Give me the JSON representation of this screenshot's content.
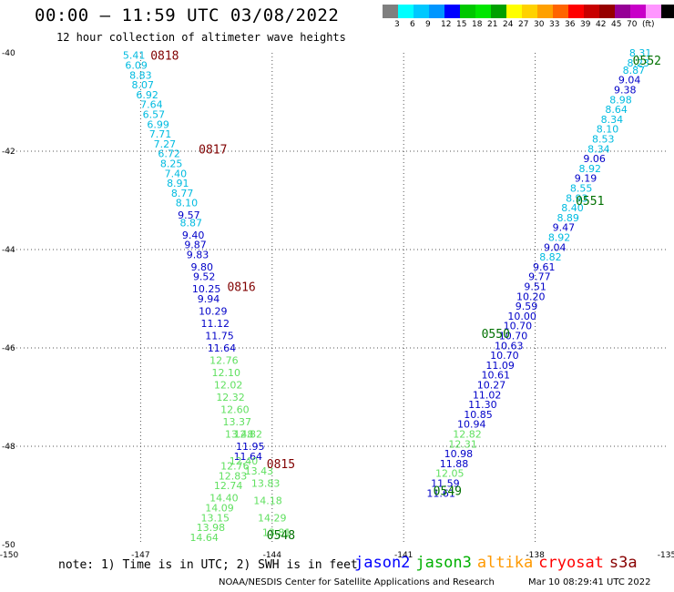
{
  "header": {
    "title": "00:00 – 11:59 UTC 03/08/2022",
    "subtitle": "12 hour collection of altimeter wave heights"
  },
  "colorbar": {
    "colors": [
      "#7f7f7f",
      "#00ffff",
      "#00c8ff",
      "#0096ff",
      "#0000ff",
      "#00c800",
      "#00e600",
      "#00a000",
      "#ffff00",
      "#ffd200",
      "#ffa000",
      "#ff6400",
      "#ff0000",
      "#c80000",
      "#960000",
      "#960096",
      "#c800c8",
      "#ff96ff",
      "#000000"
    ],
    "labels": [
      "3",
      "6",
      "9",
      "12",
      "15",
      "18",
      "21",
      "24",
      "27",
      "30",
      "33",
      "36",
      "39",
      "42",
      "45",
      "70",
      "(ft)"
    ]
  },
  "map": {
    "lon_ticks": [
      "-150",
      "-147",
      "-144",
      "-141",
      "-138",
      "-135"
    ],
    "lat_ticks": [
      "-40",
      "-42",
      "-44",
      "-46",
      "-48",
      "-50"
    ]
  },
  "chart_data": {
    "type": "map",
    "xlim": [
      -150,
      -135
    ],
    "ylim": [
      -50,
      -40
    ],
    "grid": true,
    "passes": [
      {
        "track": "descending",
        "colors": {
          "cyan": "#00bbe0",
          "blue": "#0000c8",
          "green": "#60e060"
        },
        "points": [
          {
            "lon": -147.15,
            "lat": -40.05,
            "v": "5.41",
            "c": "cyan"
          },
          {
            "lon": -147.1,
            "lat": -40.25,
            "v": "6.09",
            "c": "cyan"
          },
          {
            "lon": -147.0,
            "lat": -40.45,
            "v": "8.83",
            "c": "cyan"
          },
          {
            "lon": -146.95,
            "lat": -40.65,
            "v": "8.07",
            "c": "cyan"
          },
          {
            "lon": -146.85,
            "lat": -40.85,
            "v": "6.92",
            "c": "cyan"
          },
          {
            "lon": -146.75,
            "lat": -41.05,
            "v": "7.64",
            "c": "cyan"
          },
          {
            "lon": -146.7,
            "lat": -41.25,
            "v": "6.57",
            "c": "cyan"
          },
          {
            "lon": -146.6,
            "lat": -41.45,
            "v": "6.99",
            "c": "cyan"
          },
          {
            "lon": -146.55,
            "lat": -41.65,
            "v": "7.71",
            "c": "cyan"
          },
          {
            "lon": -146.45,
            "lat": -41.85,
            "v": "7.27",
            "c": "cyan"
          },
          {
            "lon": -146.35,
            "lat": -42.05,
            "v": "6.72",
            "c": "cyan"
          },
          {
            "lon": -146.3,
            "lat": -42.25,
            "v": "8.25",
            "c": "cyan"
          },
          {
            "lon": -146.2,
            "lat": -42.45,
            "v": "7.40",
            "c": "cyan"
          },
          {
            "lon": -146.15,
            "lat": -42.65,
            "v": "8.91",
            "c": "cyan"
          },
          {
            "lon": -146.05,
            "lat": -42.85,
            "v": "8.77",
            "c": "cyan"
          },
          {
            "lon": -145.95,
            "lat": -43.05,
            "v": "8.10",
            "c": "cyan"
          },
          {
            "lon": -145.9,
            "lat": -43.3,
            "v": "9.57",
            "c": "blue"
          },
          {
            "lon": -145.85,
            "lat": -43.45,
            "v": "8.87",
            "c": "cyan"
          },
          {
            "lon": -145.8,
            "lat": -43.7,
            "v": "9.40",
            "c": "blue"
          },
          {
            "lon": -145.75,
            "lat": -43.9,
            "v": "9.87",
            "c": "blue"
          },
          {
            "lon": -145.7,
            "lat": -44.1,
            "v": "9.83",
            "c": "blue"
          },
          {
            "lon": -145.6,
            "lat": -44.35,
            "v": "9.80",
            "c": "blue"
          },
          {
            "lon": -145.55,
            "lat": -44.55,
            "v": "9.52",
            "c": "blue"
          },
          {
            "lon": -145.5,
            "lat": -44.8,
            "v": "10.25",
            "c": "blue"
          },
          {
            "lon": -145.45,
            "lat": -45.0,
            "v": "9.94",
            "c": "blue"
          },
          {
            "lon": -145.35,
            "lat": -45.25,
            "v": "10.29",
            "c": "blue"
          },
          {
            "lon": -145.3,
            "lat": -45.5,
            "v": "11.12",
            "c": "blue"
          },
          {
            "lon": -145.2,
            "lat": -45.75,
            "v": "11.75",
            "c": "blue"
          },
          {
            "lon": -145.15,
            "lat": -46.0,
            "v": "11.64",
            "c": "blue"
          },
          {
            "lon": -145.1,
            "lat": -46.25,
            "v": "12.76",
            "c": "green"
          },
          {
            "lon": -145.05,
            "lat": -46.5,
            "v": "12.10",
            "c": "green"
          },
          {
            "lon": -145.0,
            "lat": -46.75,
            "v": "12.02",
            "c": "green"
          },
          {
            "lon": -144.95,
            "lat": -47.0,
            "v": "12.32",
            "c": "green"
          },
          {
            "lon": -144.85,
            "lat": -47.25,
            "v": "12.60",
            "c": "green"
          },
          {
            "lon": -144.8,
            "lat": -47.5,
            "v": "13.37",
            "c": "green"
          },
          {
            "lon": -144.75,
            "lat": -47.75,
            "v": "13.48",
            "c": "green"
          },
          {
            "lon": -144.55,
            "lat": -47.75,
            "v": "12.82",
            "c": "green"
          },
          {
            "lon": -144.5,
            "lat": -48.0,
            "v": "11.95",
            "c": "blue"
          },
          {
            "lon": -144.55,
            "lat": -48.2,
            "v": "11.64",
            "c": "blue"
          },
          {
            "lon": -144.65,
            "lat": -48.3,
            "v": "12.40",
            "c": "green"
          },
          {
            "lon": -144.85,
            "lat": -48.4,
            "v": "12.76",
            "c": "green"
          },
          {
            "lon": -144.3,
            "lat": -48.5,
            "v": "13.43",
            "c": "green"
          },
          {
            "lon": -144.9,
            "lat": -48.6,
            "v": "12.83",
            "c": "green"
          },
          {
            "lon": -144.15,
            "lat": -48.75,
            "v": "13.83",
            "c": "green"
          },
          {
            "lon": -145.0,
            "lat": -48.8,
            "v": "12.74",
            "c": "green"
          },
          {
            "lon": -145.1,
            "lat": -49.05,
            "v": "14.40",
            "c": "green"
          },
          {
            "lon": -144.1,
            "lat": -49.1,
            "v": "14.18",
            "c": "green"
          },
          {
            "lon": -145.2,
            "lat": -49.25,
            "v": "14.09",
            "c": "green"
          },
          {
            "lon": -144.0,
            "lat": -49.45,
            "v": "14.29",
            "c": "green"
          },
          {
            "lon": -145.3,
            "lat": -49.45,
            "v": "13.15",
            "c": "green"
          },
          {
            "lon": -145.4,
            "lat": -49.65,
            "v": "13.98",
            "c": "green"
          },
          {
            "lon": -143.9,
            "lat": -49.75,
            "v": "13.81",
            "c": "green"
          },
          {
            "lon": -145.55,
            "lat": -49.85,
            "v": "14.64",
            "c": "green"
          }
        ],
        "time_labels": [
          {
            "lon": -146.45,
            "lat": -40.05,
            "text": "0818"
          },
          {
            "lon": -145.35,
            "lat": -41.95,
            "text": "0817"
          },
          {
            "lon": -144.7,
            "lat": -44.75,
            "text": "0816"
          },
          {
            "lon": -143.8,
            "lat": -48.35,
            "text": "0815"
          }
        ],
        "time_color": "#800000"
      },
      {
        "track": "ascending",
        "points": [
          {
            "lon": -135.6,
            "lat": -40.0,
            "v": "8.31",
            "c": "cyan"
          },
          {
            "lon": -135.65,
            "lat": -40.2,
            "v": "8.23",
            "c": "cyan"
          },
          {
            "lon": -135.75,
            "lat": -40.35,
            "v": "8.87",
            "c": "cyan"
          },
          {
            "lon": -135.85,
            "lat": -40.55,
            "v": "9.04",
            "c": "blue"
          },
          {
            "lon": -135.95,
            "lat": -40.75,
            "v": "9.38",
            "c": "blue"
          },
          {
            "lon": -136.05,
            "lat": -40.95,
            "v": "8.98",
            "c": "cyan"
          },
          {
            "lon": -136.15,
            "lat": -41.15,
            "v": "8.64",
            "c": "cyan"
          },
          {
            "lon": -136.25,
            "lat": -41.35,
            "v": "8.34",
            "c": "cyan"
          },
          {
            "lon": -136.35,
            "lat": -41.55,
            "v": "8.10",
            "c": "cyan"
          },
          {
            "lon": -136.45,
            "lat": -41.75,
            "v": "8.53",
            "c": "cyan"
          },
          {
            "lon": -136.55,
            "lat": -41.95,
            "v": "8.34",
            "c": "cyan"
          },
          {
            "lon": -136.65,
            "lat": -42.15,
            "v": "9.06",
            "c": "blue"
          },
          {
            "lon": -136.75,
            "lat": -42.35,
            "v": "8.92",
            "c": "cyan"
          },
          {
            "lon": -136.85,
            "lat": -42.55,
            "v": "9.19",
            "c": "blue"
          },
          {
            "lon": -136.95,
            "lat": -42.75,
            "v": "8.55",
            "c": "cyan"
          },
          {
            "lon": -137.05,
            "lat": -42.95,
            "v": "8.93",
            "c": "cyan"
          },
          {
            "lon": -137.15,
            "lat": -43.15,
            "v": "8.40",
            "c": "cyan"
          },
          {
            "lon": -137.25,
            "lat": -43.35,
            "v": "8.89",
            "c": "cyan"
          },
          {
            "lon": -137.35,
            "lat": -43.55,
            "v": "9.47",
            "c": "blue"
          },
          {
            "lon": -137.45,
            "lat": -43.75,
            "v": "8.92",
            "c": "cyan"
          },
          {
            "lon": -137.55,
            "lat": -43.95,
            "v": "9.04",
            "c": "blue"
          },
          {
            "lon": -137.65,
            "lat": -44.15,
            "v": "8.82",
            "c": "cyan"
          },
          {
            "lon": -137.8,
            "lat": -44.35,
            "v": "9.61",
            "c": "blue"
          },
          {
            "lon": -137.9,
            "lat": -44.55,
            "v": "9.77",
            "c": "blue"
          },
          {
            "lon": -138.0,
            "lat": -44.75,
            "v": "9.51",
            "c": "blue"
          },
          {
            "lon": -138.1,
            "lat": -44.95,
            "v": "10.20",
            "c": "blue"
          },
          {
            "lon": -138.2,
            "lat": -45.15,
            "v": "9.59",
            "c": "blue"
          },
          {
            "lon": -138.3,
            "lat": -45.35,
            "v": "10.00",
            "c": "blue"
          },
          {
            "lon": -138.4,
            "lat": -45.55,
            "v": "10.70",
            "c": "blue"
          },
          {
            "lon": -138.5,
            "lat": -45.75,
            "v": "10.70",
            "c": "blue"
          },
          {
            "lon": -138.6,
            "lat": -45.95,
            "v": "10.63",
            "c": "blue"
          },
          {
            "lon": -138.7,
            "lat": -46.15,
            "v": "10.70",
            "c": "blue"
          },
          {
            "lon": -138.8,
            "lat": -46.35,
            "v": "11.09",
            "c": "blue"
          },
          {
            "lon": -138.9,
            "lat": -46.55,
            "v": "10.61",
            "c": "blue"
          },
          {
            "lon": -139.0,
            "lat": -46.75,
            "v": "10.27",
            "c": "blue"
          },
          {
            "lon": -139.1,
            "lat": -46.95,
            "v": "11.02",
            "c": "blue"
          },
          {
            "lon": -139.2,
            "lat": -47.15,
            "v": "11.30",
            "c": "blue"
          },
          {
            "lon": -139.3,
            "lat": -47.35,
            "v": "10.85",
            "c": "blue"
          },
          {
            "lon": -139.45,
            "lat": -47.55,
            "v": "10.94",
            "c": "blue"
          },
          {
            "lon": -139.55,
            "lat": -47.75,
            "v": "12.82",
            "c": "green"
          },
          {
            "lon": -139.65,
            "lat": -47.95,
            "v": "12.31",
            "c": "green"
          },
          {
            "lon": -139.75,
            "lat": -48.15,
            "v": "10.98",
            "c": "blue"
          },
          {
            "lon": -139.85,
            "lat": -48.35,
            "v": "11.88",
            "c": "blue"
          },
          {
            "lon": -139.95,
            "lat": -48.55,
            "v": "12.05",
            "c": "green"
          },
          {
            "lon": -140.05,
            "lat": -48.75,
            "v": "11.59",
            "c": "blue"
          },
          {
            "lon": -140.15,
            "lat": -48.95,
            "v": "11.61",
            "c": "blue"
          }
        ],
        "time_labels": [
          {
            "lon": -135.45,
            "lat": -40.15,
            "text": "0552"
          },
          {
            "lon": -136.75,
            "lat": -43.0,
            "text": "0551"
          },
          {
            "lon": -138.9,
            "lat": -45.7,
            "text": "0550"
          },
          {
            "lon": -140.0,
            "lat": -48.9,
            "text": "0549"
          },
          {
            "lon": -143.8,
            "lat": -49.8,
            "text": "0548"
          }
        ],
        "time_color": "#007000"
      }
    ]
  },
  "note": "note: 1) Time is in UTC; 2) SWH is in feet",
  "legend": [
    {
      "label": "jason2",
      "color": "#0000ff"
    },
    {
      "label": "jason3",
      "color": "#00b000"
    },
    {
      "label": "altika",
      "color": "#ff9900"
    },
    {
      "label": "cryosat",
      "color": "#ff0000"
    },
    {
      "label": "s3a",
      "color": "#880000"
    }
  ],
  "footer": {
    "credit": "NOAA/NESDIS Center for Satellite Applications and Research",
    "timestamp": "Mar 10 08:29:41 UTC 2022"
  }
}
